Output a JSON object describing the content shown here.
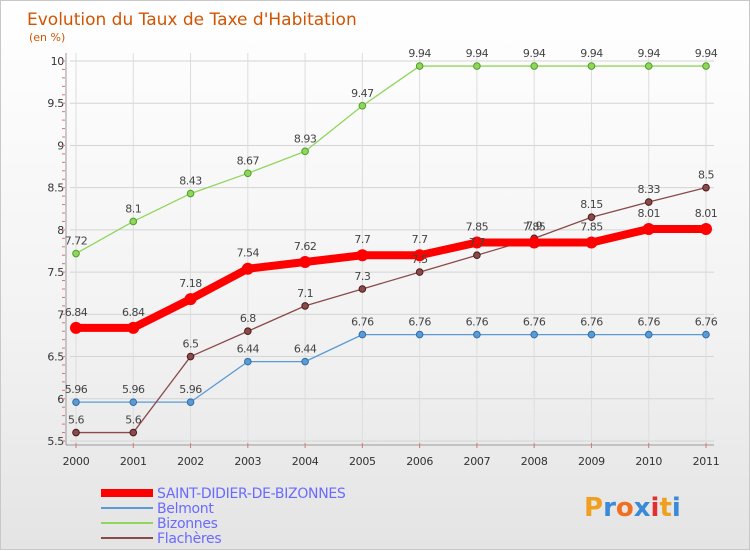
{
  "chart_data": {
    "type": "line",
    "title": "Evolution du Taux de Taxe d'Habitation",
    "unit_label": "(en %)",
    "x": [
      "2000",
      "2001",
      "2002",
      "2003",
      "2004",
      "2005",
      "2006",
      "2007",
      "2008",
      "2009",
      "2010",
      "2011"
    ],
    "ylim": [
      5.5,
      10
    ],
    "y_ticks": [
      "5.5",
      "6",
      "6.5",
      "7",
      "7.5",
      "8",
      "8.5",
      "9",
      "9.5",
      "10"
    ],
    "grid": true,
    "legend_position": "bottom-left",
    "series": [
      {
        "name": "SAINT-DIDIER-DE-BIZONNES",
        "color": "#ff0000",
        "values": [
          6.84,
          6.84,
          7.18,
          7.54,
          7.62,
          7.7,
          7.7,
          7.85,
          7.85,
          7.85,
          8.01,
          8.01
        ],
        "labels": [
          "6.84",
          "6.84",
          "7.18",
          "7.54",
          "7.62",
          "7.7",
          "7.7",
          "7.85",
          "7.85",
          "7.85",
          "8.01",
          "8.01"
        ]
      },
      {
        "name": "Belmont",
        "color": "#5b9bd5",
        "values": [
          5.96,
          5.96,
          5.96,
          6.44,
          6.44,
          6.76,
          6.76,
          6.76,
          6.76,
          6.76,
          6.76,
          6.76
        ],
        "labels": [
          "5.96",
          "5.96",
          "5.96",
          "6.44",
          "6.44",
          "6.76",
          "6.76",
          "6.76",
          "6.76",
          "6.76",
          "6.76",
          "6.76"
        ]
      },
      {
        "name": "Bizonnes",
        "color": "#8fd65a",
        "values": [
          7.72,
          8.1,
          8.43,
          8.67,
          8.93,
          9.47,
          9.94,
          9.94,
          9.94,
          9.94,
          9.94,
          9.94
        ],
        "labels": [
          "7.72",
          "8.1",
          "8.43",
          "8.67",
          "8.93",
          "9.47",
          "9.94",
          "9.94",
          "9.94",
          "9.94",
          "9.94",
          "9.94"
        ]
      },
      {
        "name": "Flachères",
        "color": "#8a4a4a",
        "values": [
          5.6,
          5.6,
          6.5,
          6.8,
          7.1,
          7.3,
          7.5,
          7.7,
          7.9,
          8.15,
          8.33,
          8.5
        ],
        "labels": [
          "5.6",
          "5.6",
          "6.5",
          "6.8",
          "7.1",
          "7.3",
          "7.5",
          "7.7",
          "7.9",
          "8.15",
          "8.33",
          "8.5"
        ]
      }
    ]
  },
  "logo": {
    "text": "Proxiti",
    "letters": [
      "P",
      "r",
      "o",
      "x",
      "i",
      "t",
      "i"
    ],
    "colors": [
      "#f0a020",
      "#3a8ad8",
      "#f07020",
      "#3a8ad8",
      "#e03030",
      "#f0a020",
      "#3a8ad8"
    ]
  }
}
